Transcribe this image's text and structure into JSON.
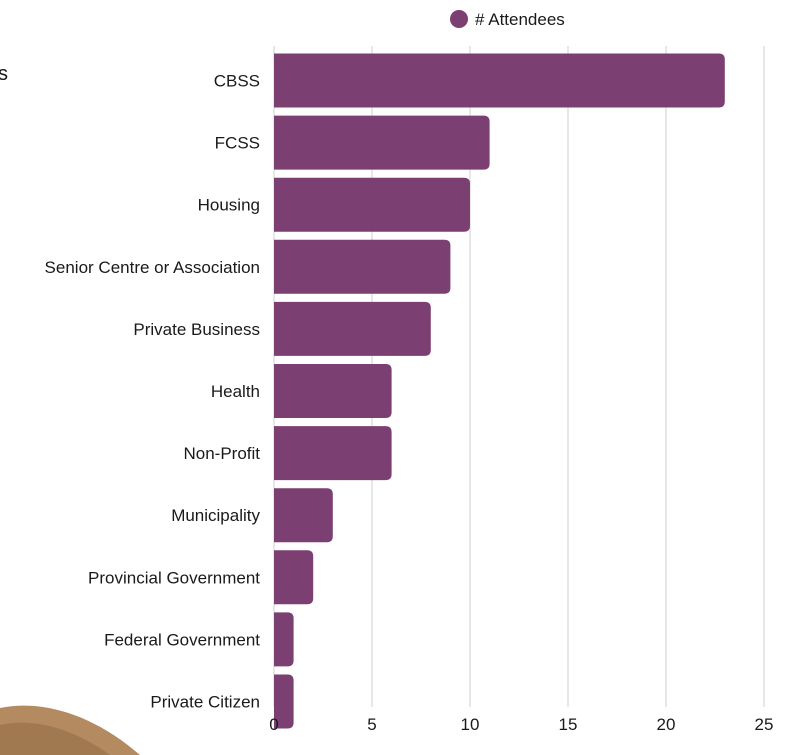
{
  "colors": {
    "bar": "#7b3f72",
    "grid": "#cfcfcf",
    "text": "#1a1a1a",
    "background_decor": "#b48a60"
  },
  "fragments": {
    "cropped_title_char": "s"
  },
  "chart_data": {
    "type": "bar",
    "orientation": "horizontal",
    "title": "",
    "xlabel": "",
    "ylabel": "",
    "categories": [
      "CBSS",
      "FCSS",
      "Housing",
      "Senior Centre or Association",
      "Private Business",
      "Health",
      "Non-Profit",
      "Municipality",
      "Provincial Government",
      "Federal Government",
      "Private Citizen"
    ],
    "series": [
      {
        "name": "# Attendees",
        "values": [
          23,
          11,
          10,
          9,
          8,
          6,
          6,
          3,
          2,
          1,
          1
        ]
      }
    ],
    "xlim": [
      0,
      25
    ],
    "x_ticks": [
      0,
      5,
      10,
      15,
      20,
      25
    ],
    "grid": "vertical",
    "legend": "top"
  }
}
